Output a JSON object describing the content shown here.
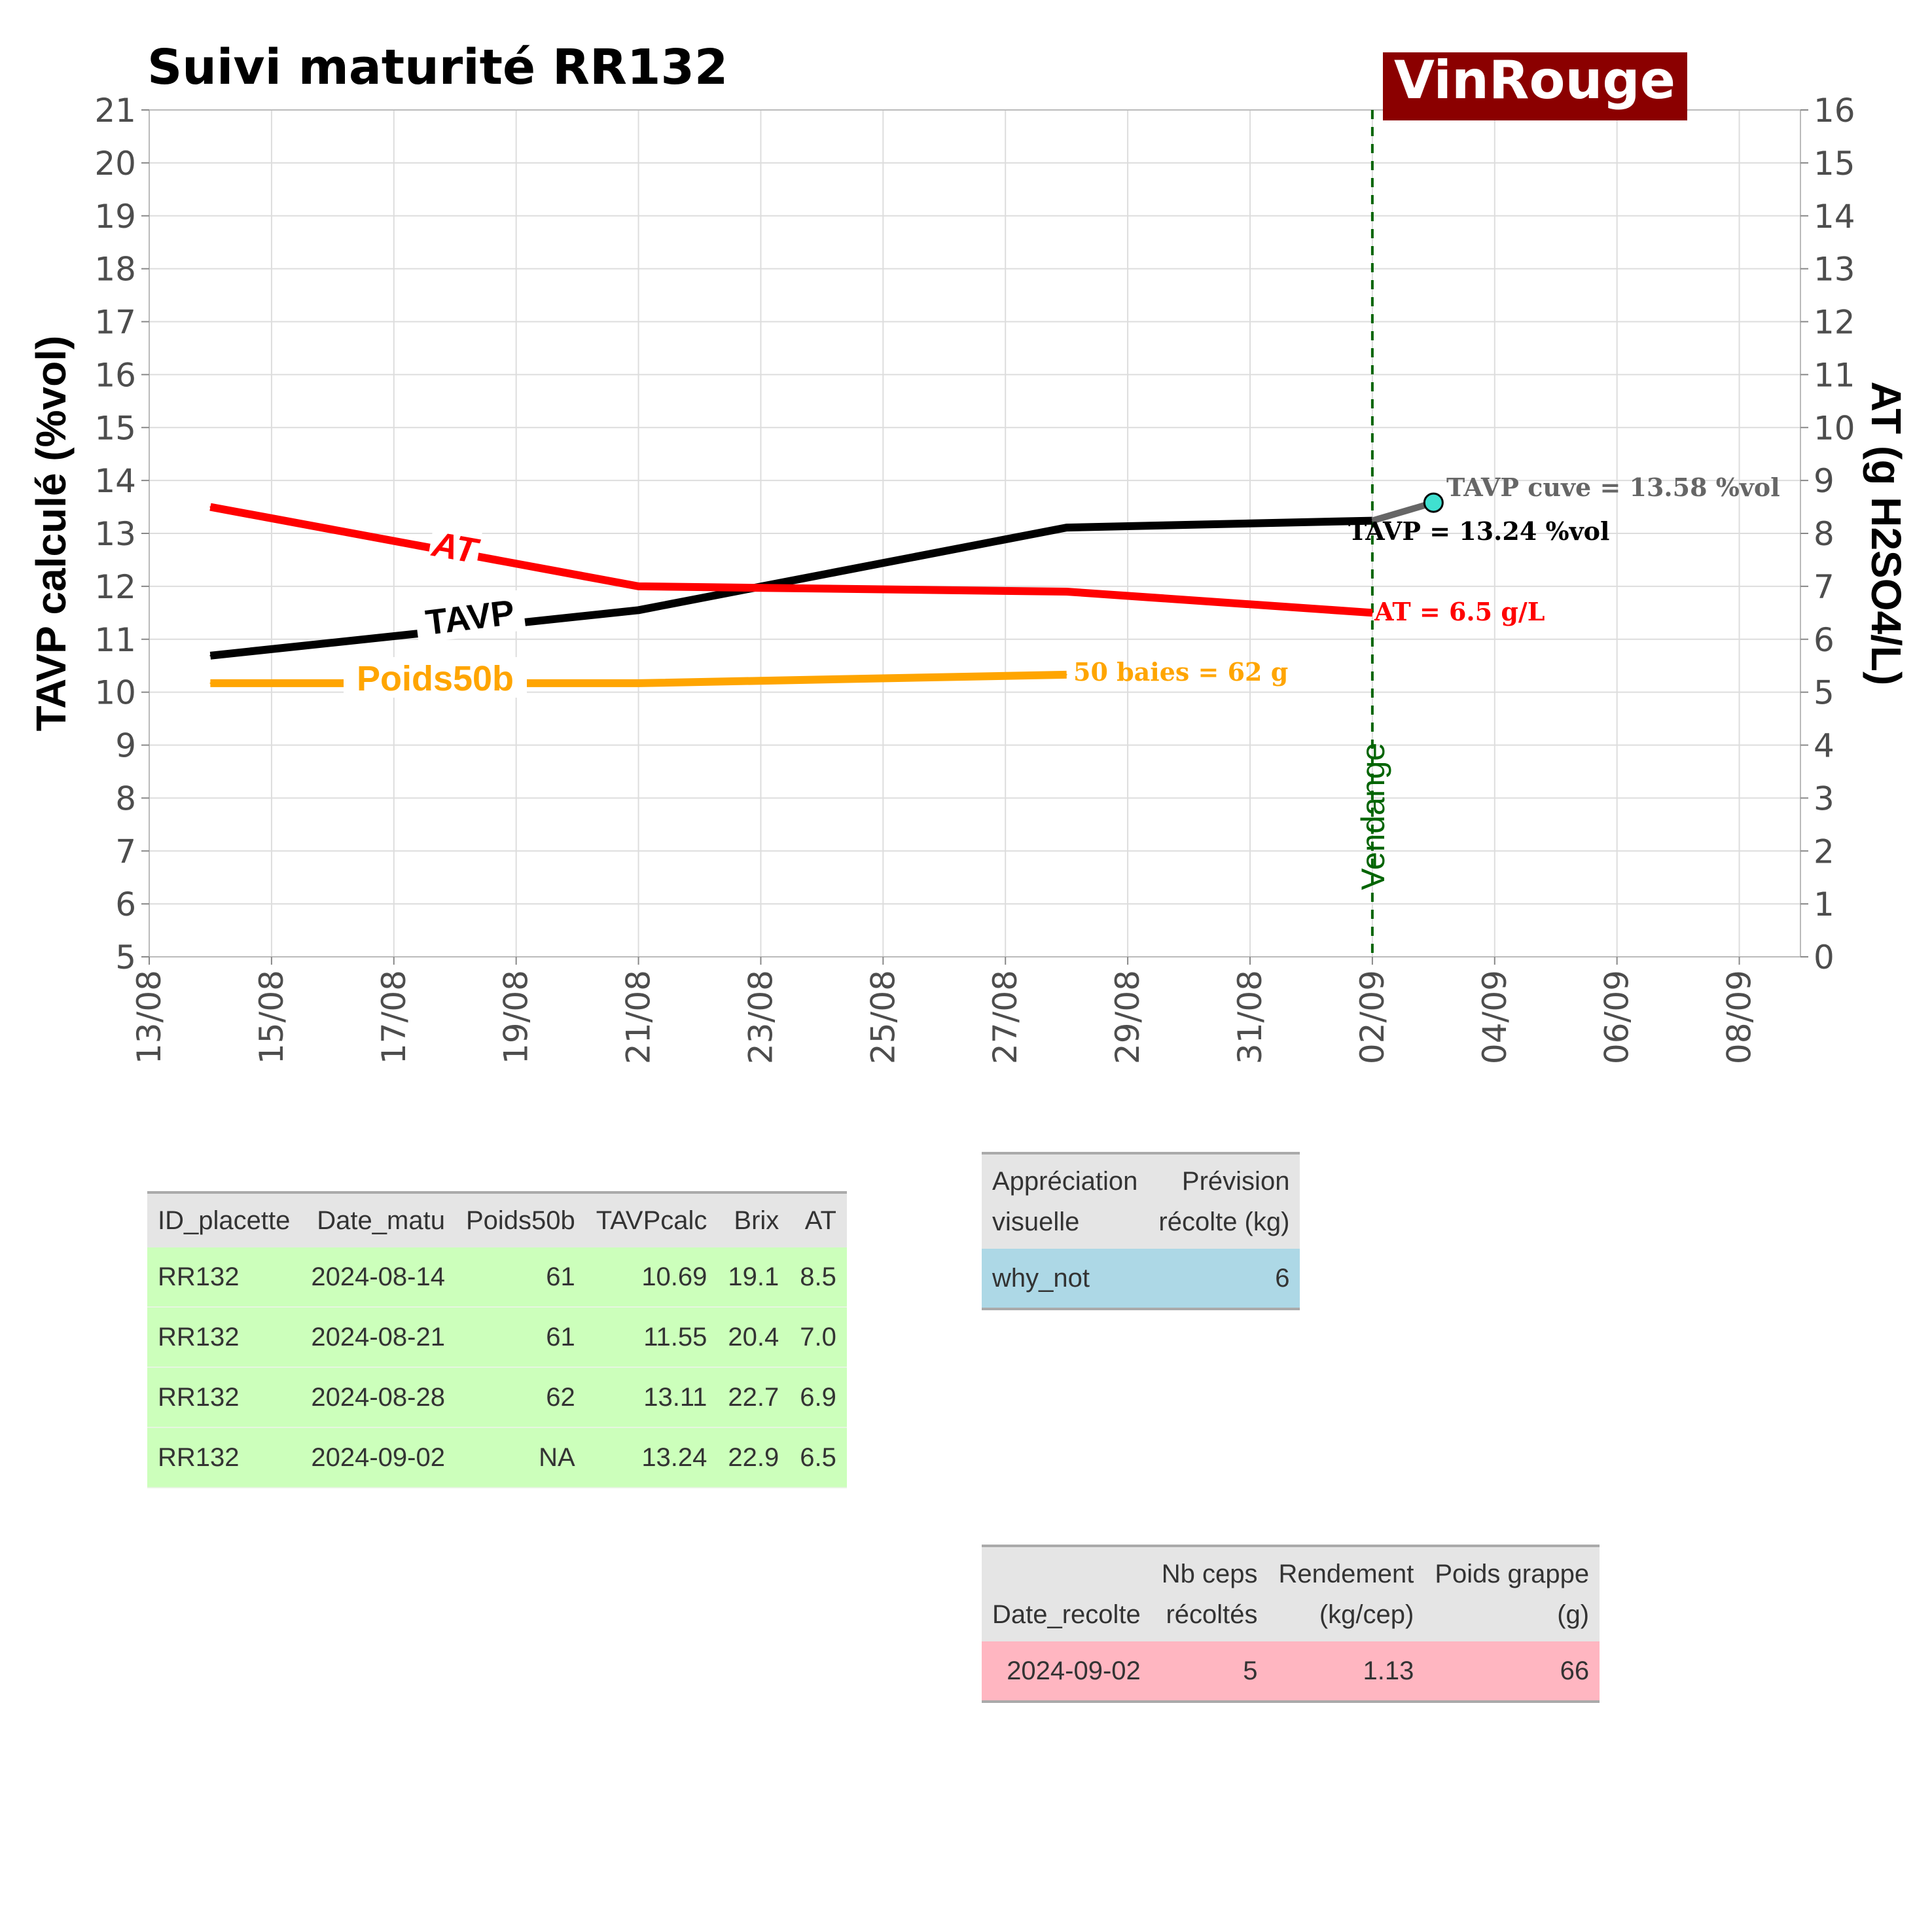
{
  "title": "Suivi maturité  RR132",
  "badge": "VinRouge",
  "colors": {
    "tavp": "#000000",
    "at": "#ff0000",
    "poids": "#ffa500",
    "cuve": "#666666",
    "cuve_point": "#40e0d0",
    "vendange": "#006400",
    "badge_bg": "#8b0000",
    "tbl_matu": "#ccffbb",
    "tbl_vis": "#add8e6",
    "tbl_rec": "#ffb6c1"
  },
  "chart_data": {
    "type": "line",
    "title": "Suivi maturité  RR132",
    "ylabel": "TAVP calculé (%vol)",
    "y2label": "AT (g H2SO4/L)",
    "ylim": [
      5,
      21
    ],
    "y2lim": [
      0,
      16
    ],
    "xlim": [
      "2024-08-13",
      "2024-09-09"
    ],
    "x_ticks": [
      "13/08",
      "15/08",
      "17/08",
      "19/08",
      "21/08",
      "23/08",
      "25/08",
      "27/08",
      "29/08",
      "31/08",
      "02/09",
      "04/09",
      "06/09",
      "08/09"
    ],
    "y_ticks": [
      5,
      6,
      7,
      8,
      9,
      10,
      11,
      12,
      13,
      14,
      15,
      16,
      17,
      18,
      19,
      20,
      21
    ],
    "y2_ticks": [
      0,
      1,
      2,
      3,
      4,
      5,
      6,
      7,
      8,
      9,
      10,
      11,
      12,
      13,
      14,
      15,
      16
    ],
    "grid": true,
    "series": [
      {
        "name": "TAVP",
        "axis": "left",
        "x": [
          "2024-08-14",
          "2024-08-21",
          "2024-08-28",
          "2024-09-02"
        ],
        "y": [
          10.69,
          11.55,
          13.11,
          13.24
        ]
      },
      {
        "name": "AT",
        "axis": "right",
        "x": [
          "2024-08-14",
          "2024-08-21",
          "2024-08-28",
          "2024-09-02"
        ],
        "y": [
          8.5,
          7.0,
          6.9,
          6.5
        ]
      },
      {
        "name": "Poids50b",
        "axis": "left",
        "x": [
          "2024-08-14",
          "2024-08-21",
          "2024-08-28"
        ],
        "y": [
          10.17,
          10.17,
          10.33
        ]
      },
      {
        "name": "",
        "axis": "left",
        "x": [
          "2024-09-02",
          "2024-09-03"
        ],
        "y": [
          13.24,
          13.58
        ]
      }
    ],
    "vline": {
      "x": "2024-09-02",
      "label": "Vendange"
    },
    "annotations": {
      "cuve": "TAVP cuve = 13.58 %vol",
      "tavp_end": "TAVP = 13.24 %vol",
      "at_end": "AT = 6.5 g/L",
      "poids_end": "50 baies = 62 g"
    }
  },
  "table_maturite": {
    "headers": [
      "ID_placette",
      "Date_matu",
      "Poids50b",
      "TAVPcalc",
      "Brix",
      "AT"
    ],
    "rows": [
      [
        "RR132",
        "2024-08-14",
        "61",
        "10.69",
        "19.1",
        "8.5"
      ],
      [
        "RR132",
        "2024-08-21",
        "61",
        "11.55",
        "20.4",
        "7.0"
      ],
      [
        "RR132",
        "2024-08-28",
        "62",
        "13.11",
        "22.7",
        "6.9"
      ],
      [
        "RR132",
        "2024-09-02",
        "NA",
        "13.24",
        "22.9",
        "6.5"
      ]
    ]
  },
  "table_visuelle": {
    "headers": [
      [
        "Appréciation",
        "visuelle"
      ],
      [
        "Prévision",
        "récolte (kg)"
      ]
    ],
    "rows": [
      [
        "why_not",
        "6"
      ]
    ]
  },
  "table_recolte": {
    "headers": [
      [
        "",
        "Date_recolte"
      ],
      [
        "Nb ceps",
        "récoltés"
      ],
      [
        "Rendement",
        "(kg/cep)"
      ],
      [
        "Poids grappe",
        "(g)"
      ]
    ],
    "rows": [
      [
        "2024-09-02",
        "5",
        "1.13",
        "66"
      ]
    ]
  }
}
